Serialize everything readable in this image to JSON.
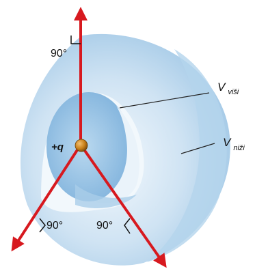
{
  "colors": {
    "field_lines": "#d7191f",
    "shell_outer": "#a9cde8",
    "shell_highlight": "#e8f2fa",
    "shell_inner": "#8fbde0",
    "charge": "#c8801a",
    "leader": "#222222"
  },
  "labels": {
    "angle_top": "90°",
    "angle_left": "90°",
    "angle_right": "90°",
    "charge": "+q",
    "v_higher_main": "V",
    "v_higher_sub": "viši",
    "v_lower_main": "V",
    "v_lower_sub": "niži"
  },
  "icons": {
    "charge": "point-charge-icon",
    "arrow": "arrowhead-icon"
  }
}
